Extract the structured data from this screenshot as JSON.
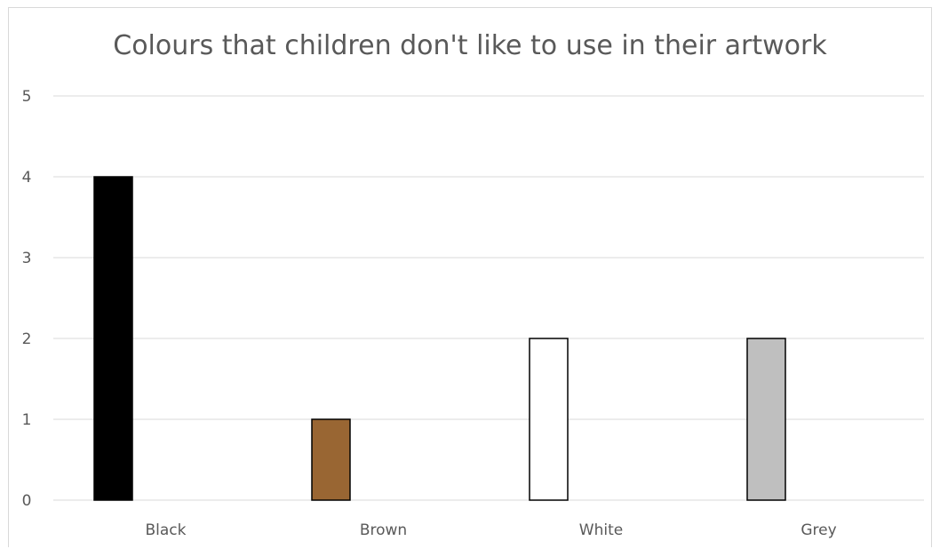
{
  "chart_data": {
    "type": "bar",
    "title": "Colours that children don't like to use in their artwork",
    "categories": [
      "Black",
      "Brown",
      "White",
      "Grey"
    ],
    "values": [
      4,
      1,
      2,
      2
    ],
    "bar_colors": [
      "#000000",
      "#996633",
      "#ffffff",
      "#bfbfbf"
    ],
    "bar_outline": "#000000",
    "ylim": [
      0,
      5
    ],
    "yticks": [
      0,
      1,
      2,
      3,
      4,
      5
    ],
    "grid": true,
    "legend": "none",
    "xlabel": "",
    "ylabel": ""
  },
  "style": {
    "gridline_color": "#d9d9d9",
    "text_color": "#595959"
  }
}
